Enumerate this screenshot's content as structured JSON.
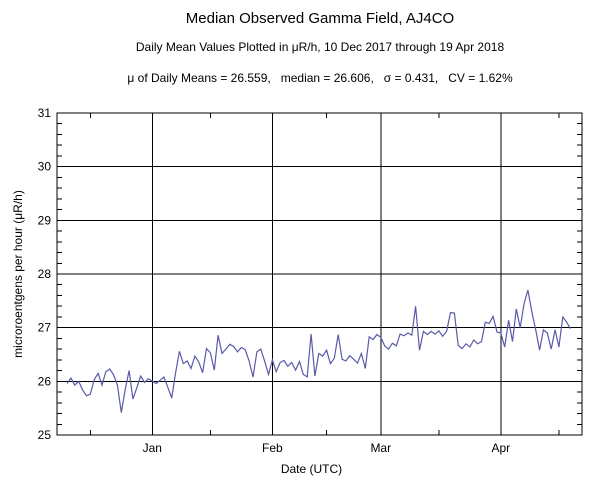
{
  "header": {
    "title": "Median Observed Gamma Field, AJ4CO",
    "subtitle": "Daily Mean Values Plotted in μR/h, 10 Dec 2017 through 19 Apr 2018",
    "stats": "μ of Daily Means = 26.559,   median = 26.606,   σ = 0.431,   CV = 1.62%"
  },
  "chart_data": {
    "type": "line",
    "title": "Median Observed Gamma Field, AJ4CO",
    "xlabel": "Date (UTC)",
    "ylabel": "microroentgens per hour (μR/h)",
    "ylim": [
      25,
      31
    ],
    "y_major_ticks": [
      25,
      26,
      27,
      28,
      29,
      30,
      31
    ],
    "y_minor_step": 0.2,
    "x_month_tick_labels": [
      "Jan",
      "Feb",
      "Mar",
      "Apr"
    ],
    "x_minor_tick_dates": [
      "2017-12-16",
      "2018-01-16",
      "2018-02-15",
      "2018-03-16",
      "2018-04-16"
    ],
    "xlim": [
      "2017-12-08",
      "2018-04-22"
    ],
    "grid": "major-both",
    "legend": "none",
    "line_color": "#5a5aaa",
    "stats": {
      "mean_of_daily_means": 26.559,
      "median": 26.606,
      "sigma": 0.431,
      "cv_percent": 1.62
    },
    "series": [
      {
        "name": "daily-mean-gamma",
        "x_start": "2017-12-10",
        "x_step_days": 1,
        "x_end": "2018-04-19",
        "values": [
          25.96,
          26.06,
          25.93,
          26.0,
          25.84,
          25.73,
          25.76,
          26.03,
          26.15,
          25.93,
          26.18,
          26.23,
          26.12,
          25.93,
          25.42,
          25.85,
          26.2,
          25.67,
          25.88,
          26.1,
          25.98,
          26.05,
          26.0,
          25.96,
          26.02,
          26.08,
          25.89,
          25.69,
          26.15,
          26.56,
          26.33,
          26.38,
          26.24,
          26.47,
          26.36,
          26.16,
          26.61,
          26.53,
          26.21,
          26.86,
          26.52,
          26.6,
          26.69,
          26.65,
          26.55,
          26.63,
          26.59,
          26.38,
          26.08,
          26.55,
          26.6,
          26.38,
          26.13,
          26.4,
          26.18,
          26.35,
          26.39,
          26.28,
          26.35,
          26.21,
          26.37,
          26.13,
          26.08,
          26.88,
          26.1,
          26.52,
          26.47,
          26.58,
          26.33,
          26.43,
          26.87,
          26.41,
          26.38,
          26.48,
          26.41,
          26.34,
          26.52,
          26.24,
          26.83,
          26.78,
          26.87,
          26.82,
          26.66,
          26.6,
          26.71,
          26.66,
          26.88,
          26.85,
          26.9,
          26.86,
          27.4,
          26.58,
          26.93,
          26.87,
          26.93,
          26.88,
          26.94,
          26.84,
          26.93,
          27.28,
          27.27,
          26.67,
          26.61,
          26.7,
          26.64,
          26.77,
          26.7,
          26.74,
          27.1,
          27.08,
          27.21,
          26.92,
          26.9,
          26.64,
          27.14,
          26.74,
          27.35,
          27.0,
          27.45,
          27.7,
          27.3,
          26.96,
          26.58,
          26.96,
          26.9,
          26.6,
          26.96,
          26.64,
          27.2,
          27.1,
          26.98
        ]
      }
    ]
  }
}
